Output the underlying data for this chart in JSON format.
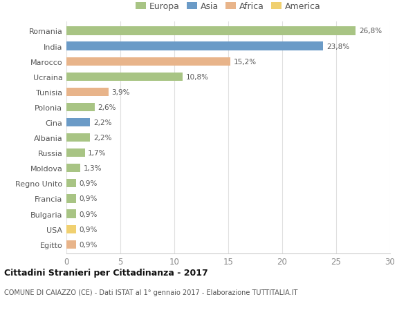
{
  "categories": [
    "Romania",
    "India",
    "Marocco",
    "Ucraina",
    "Tunisia",
    "Polonia",
    "Cina",
    "Albania",
    "Russia",
    "Moldova",
    "Regno Unito",
    "Francia",
    "Bulgaria",
    "USA",
    "Egitto"
  ],
  "values": [
    26.8,
    23.8,
    15.2,
    10.8,
    3.9,
    2.6,
    2.2,
    2.2,
    1.7,
    1.3,
    0.9,
    0.9,
    0.9,
    0.9,
    0.9
  ],
  "labels": [
    "26,8%",
    "23,8%",
    "15,2%",
    "10,8%",
    "3,9%",
    "2,6%",
    "2,2%",
    "2,2%",
    "1,7%",
    "1,3%",
    "0,9%",
    "0,9%",
    "0,9%",
    "0,9%",
    "0,9%"
  ],
  "continents": [
    "Europa",
    "Asia",
    "Africa",
    "Europa",
    "Africa",
    "Europa",
    "Asia",
    "Europa",
    "Europa",
    "Europa",
    "Europa",
    "Europa",
    "Europa",
    "America",
    "Africa"
  ],
  "continent_colors": {
    "Europa": "#a8c484",
    "Asia": "#6b9bc7",
    "Africa": "#e8b48a",
    "America": "#f0d070"
  },
  "legend_labels": [
    "Europa",
    "Asia",
    "Africa",
    "America"
  ],
  "legend_colors": [
    "#a8c484",
    "#6b9bc7",
    "#e8b48a",
    "#f0d070"
  ],
  "xlim": [
    0,
    30
  ],
  "xticks": [
    0,
    5,
    10,
    15,
    20,
    25,
    30
  ],
  "title": "Cittadini Stranieri per Cittadinanza - 2017",
  "subtitle": "COMUNE DI CAIAZZO (CE) - Dati ISTAT al 1° gennaio 2017 - Elaborazione TUTTITALIA.IT",
  "background_color": "#ffffff",
  "bar_height": 0.55
}
